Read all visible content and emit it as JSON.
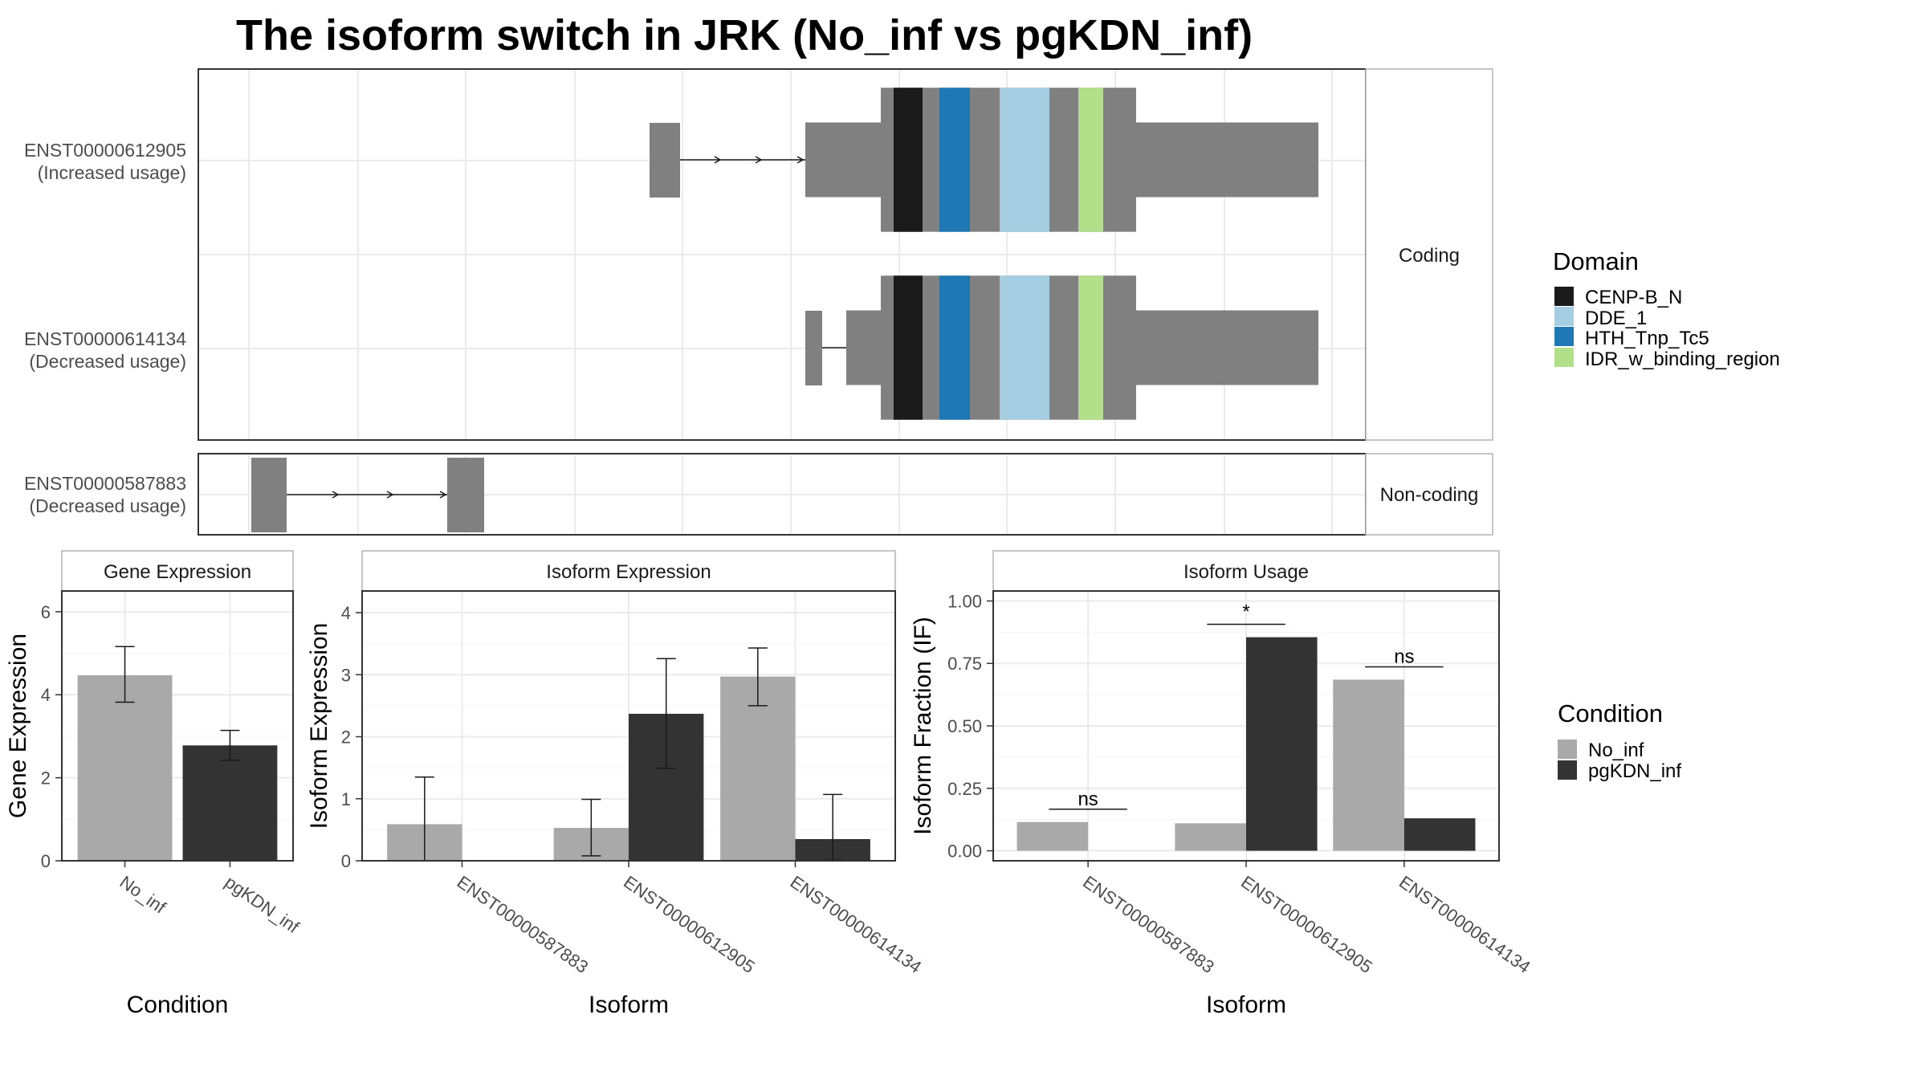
{
  "figure": {
    "title": "The isoform switch in JRK (No_inf vs pgKDN_inf)"
  },
  "structure": {
    "coding_panel_label": "Coding",
    "noncoding_panel_label": "Non-coding",
    "transcripts": [
      {
        "id": "ENST00000612905",
        "usage": "(Increased usage)",
        "group": "coding"
      },
      {
        "id": "ENST00000614134",
        "usage": "(Decreased usage)",
        "group": "coding"
      },
      {
        "id": "ENST00000587883",
        "usage": "(Decreased usage)",
        "group": "noncoding"
      }
    ]
  },
  "legend_domain": {
    "title": "Domain",
    "items": [
      {
        "label": "CENP-B_N",
        "color": "#1a1a1a"
      },
      {
        "label": "DDE_1",
        "color": "#a6cee3"
      },
      {
        "label": "HTH_Tnp_Tc5",
        "color": "#1f78b4"
      },
      {
        "label": "IDR_w_binding_region",
        "color": "#b2df8a"
      }
    ]
  },
  "legend_condition": {
    "title": "Condition",
    "items": [
      {
        "label": "No_inf",
        "color": "#a9a9a9"
      },
      {
        "label": "pgKDN_inf",
        "color": "#333333"
      }
    ]
  },
  "chart_data": [
    {
      "type": "bar",
      "title": "Gene Expression",
      "xlabel": "Condition",
      "ylabel": "Gene Expression",
      "categories": [
        "No_inf",
        "pgKDN_inf"
      ],
      "values": [
        4.47,
        2.78
      ],
      "error_low": [
        3.82,
        2.42
      ],
      "error_high": [
        5.16,
        3.14
      ],
      "ylim": [
        0,
        6.5
      ],
      "yticks": [
        0,
        2,
        4,
        6
      ]
    },
    {
      "type": "bar",
      "title": "Isoform Expression",
      "xlabel": "Isoform",
      "ylabel": "Isoform Expression",
      "categories": [
        "ENST00000587883",
        "ENST00000612905",
        "ENST00000614134"
      ],
      "series": [
        {
          "name": "No_inf",
          "values": [
            0.59,
            0.53,
            2.97
          ],
          "error_low": [
            0.0,
            0.08,
            2.5
          ],
          "error_high": [
            1.35,
            0.99,
            3.43
          ]
        },
        {
          "name": "pgKDN_inf",
          "values": [
            0.0,
            2.37,
            0.35
          ],
          "error_low": [
            0.0,
            1.49,
            0.01
          ],
          "error_high": [
            0.0,
            3.26,
            1.07
          ]
        }
      ],
      "ylim": [
        0,
        4.35
      ],
      "yticks": [
        0,
        1,
        2,
        3,
        4
      ]
    },
    {
      "type": "bar",
      "title": "Isoform Usage",
      "xlabel": "Isoform",
      "ylabel": "Isoform Fraction (IF)",
      "categories": [
        "ENST00000587883",
        "ENST00000612905",
        "ENST00000614134"
      ],
      "series": [
        {
          "name": "No_inf",
          "values": [
            0.115,
            0.11,
            0.685
          ]
        },
        {
          "name": "pgKDN_inf",
          "values": [
            0.0,
            0.855,
            0.13
          ]
        }
      ],
      "significance": [
        "ns",
        "*",
        "ns"
      ],
      "ylim": [
        -0.04,
        1.04
      ],
      "yticks": [
        0.0,
        0.25,
        0.5,
        0.75,
        1.0
      ],
      "ytick_labels": [
        "0.00",
        "0.25",
        "0.50",
        "0.75",
        "1.00"
      ]
    }
  ]
}
